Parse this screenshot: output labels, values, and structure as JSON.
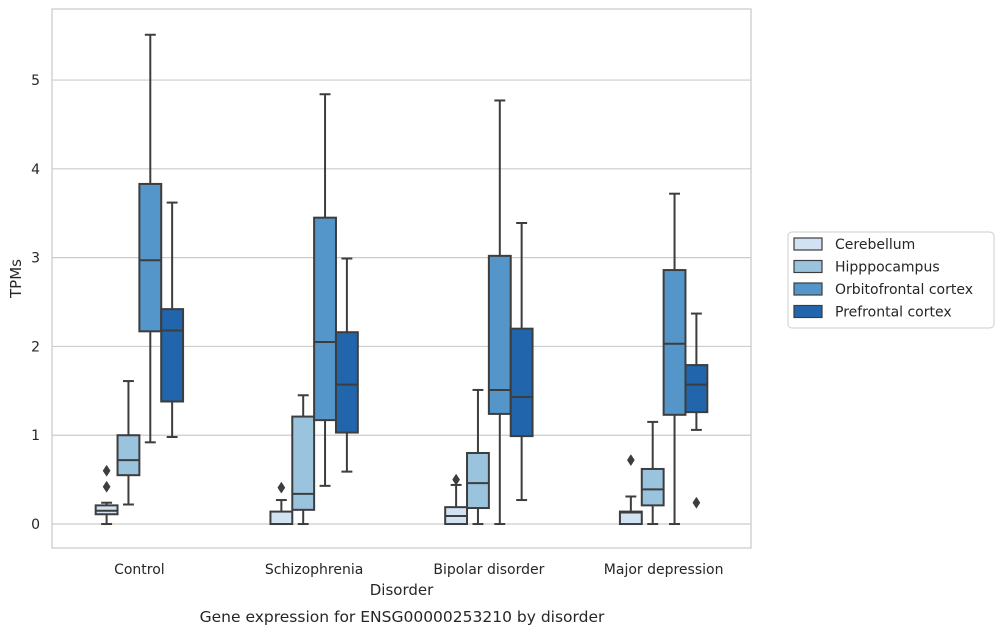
{
  "caption": "Gene expression for ENSG00000253210 by disorder",
  "chart_data": {
    "type": "box",
    "xlabel": "Disorder",
    "ylabel": "TPMs",
    "ylim": [
      -0.27,
      5.8
    ],
    "yticks": [
      0,
      1,
      2,
      3,
      4,
      5
    ],
    "grid": "horizontal",
    "legend_position": "right",
    "categories": [
      "Control",
      "Schizophrenia",
      "Bipolar disorder",
      "Major depression"
    ],
    "series": [
      {
        "name": "Cerebellum",
        "color": "#d1e2f2",
        "boxes": [
          {
            "whislo": 0.0,
            "q1": 0.11,
            "med": 0.15,
            "q3": 0.21,
            "whishi": 0.24,
            "fliers": [
              0.42,
              0.6
            ]
          },
          {
            "whislo": 0.0,
            "q1": 0.0,
            "med": 0.0,
            "q3": 0.14,
            "whishi": 0.27,
            "fliers": [
              0.41
            ]
          },
          {
            "whislo": 0.0,
            "q1": 0.0,
            "med": 0.09,
            "q3": 0.19,
            "whishi": 0.44,
            "fliers": [
              0.5
            ]
          },
          {
            "whislo": 0.0,
            "q1": 0.0,
            "med": 0.13,
            "q3": 0.14,
            "whishi": 0.31,
            "fliers": [
              0.72
            ]
          }
        ]
      },
      {
        "name": "Hipppocampus",
        "color": "#9ac4de",
        "boxes": [
          {
            "whislo": 0.22,
            "q1": 0.55,
            "med": 0.72,
            "q3": 1.0,
            "whishi": 1.61,
            "fliers": []
          },
          {
            "whislo": 0.0,
            "q1": 0.16,
            "med": 0.34,
            "q3": 1.21,
            "whishi": 1.45,
            "fliers": []
          },
          {
            "whislo": 0.0,
            "q1": 0.18,
            "med": 0.46,
            "q3": 0.8,
            "whishi": 1.51,
            "fliers": []
          },
          {
            "whislo": 0.0,
            "q1": 0.21,
            "med": 0.39,
            "q3": 0.62,
            "whishi": 1.15,
            "fliers": []
          }
        ]
      },
      {
        "name": "Orbitofrontal cortex",
        "color": "#5496c9",
        "boxes": [
          {
            "whislo": 0.92,
            "q1": 2.17,
            "med": 2.97,
            "q3": 3.83,
            "whishi": 5.51,
            "fliers": []
          },
          {
            "whislo": 0.43,
            "q1": 1.17,
            "med": 2.05,
            "q3": 3.45,
            "whishi": 4.84,
            "fliers": []
          },
          {
            "whislo": 0.0,
            "q1": 1.24,
            "med": 1.51,
            "q3": 3.02,
            "whishi": 4.77,
            "fliers": []
          },
          {
            "whislo": 0.0,
            "q1": 1.23,
            "med": 2.03,
            "q3": 2.86,
            "whishi": 3.72,
            "fliers": []
          }
        ]
      },
      {
        "name": "Prefrontal cortex",
        "color": "#2166ac",
        "boxes": [
          {
            "whislo": 0.98,
            "q1": 1.38,
            "med": 2.18,
            "q3": 2.42,
            "whishi": 3.62,
            "fliers": []
          },
          {
            "whislo": 0.59,
            "q1": 1.03,
            "med": 1.57,
            "q3": 2.16,
            "whishi": 2.99,
            "fliers": []
          },
          {
            "whislo": 0.27,
            "q1": 0.99,
            "med": 1.43,
            "q3": 2.2,
            "whishi": 3.39,
            "fliers": []
          },
          {
            "whislo": 1.06,
            "q1": 1.26,
            "med": 1.57,
            "q3": 1.79,
            "whishi": 2.37,
            "fliers": [
              0.24
            ]
          }
        ]
      }
    ]
  }
}
